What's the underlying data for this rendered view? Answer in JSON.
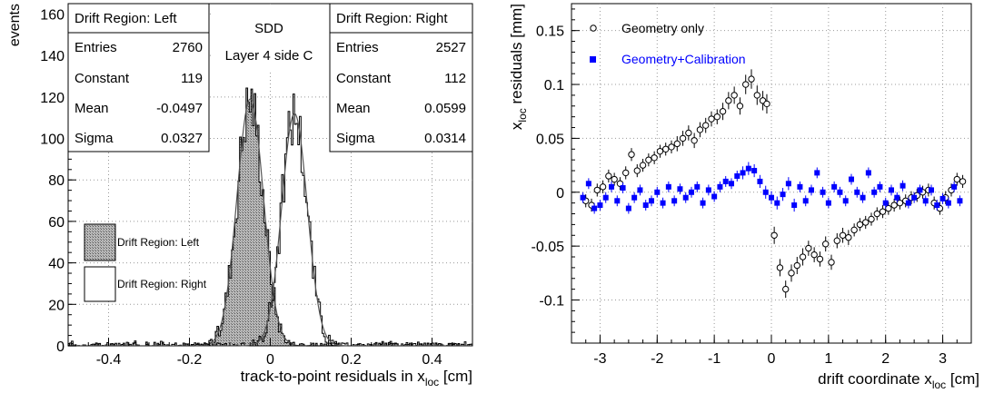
{
  "chart_data": [
    {
      "type": "bar",
      "ylabel": "events",
      "xlabel_main": "track-to-point residuals in x",
      "xlabel_sub": "loc",
      "xlabel_unit": " [cm]",
      "xlim": [
        -0.5,
        0.5
      ],
      "ylim": [
        0,
        165
      ],
      "xticks": [
        -0.4,
        -0.2,
        0,
        0.2,
        0.4
      ],
      "xtick_labels": [
        "-0.4",
        "-0.2",
        "0",
        "0.2",
        "0.4"
      ],
      "yticks": [
        0,
        20,
        40,
        60,
        80,
        100,
        120,
        140,
        160
      ],
      "ytick_labels": [
        "0",
        "20",
        "40",
        "60",
        "80",
        "100",
        "120",
        "140",
        "160"
      ],
      "grid": true,
      "center_title": [
        "SDD",
        "Layer 4 side C"
      ],
      "legend": [
        {
          "label": "Drift Region: Left",
          "fill": "hatched"
        },
        {
          "label": "Drift Region: Right",
          "fill": "none"
        }
      ],
      "stats_boxes": [
        {
          "title": "Drift Region: Left",
          "rows": [
            {
              "name": "Entries",
              "value": "2760"
            },
            {
              "name": "Constant",
              "value": "119"
            },
            {
              "name": "Mean",
              "value": "-0.0497"
            },
            {
              "name": "Sigma",
              "value": "0.0327"
            }
          ]
        },
        {
          "title": "Drift Region: Right",
          "rows": [
            {
              "name": "Entries",
              "value": "2527"
            },
            {
              "name": "Constant",
              "value": "112"
            },
            {
              "name": "Mean",
              "value": "0.0599"
            },
            {
              "name": "Sigma",
              "value": "0.0314"
            }
          ]
        }
      ],
      "series": [
        {
          "name": "Drift Region: Left",
          "entries": 2760,
          "constant": 119,
          "mean": -0.0497,
          "sigma": 0.0327
        },
        {
          "name": "Drift Region: Right",
          "entries": 2527,
          "constant": 112,
          "mean": 0.0599,
          "sigma": 0.0314
        }
      ]
    },
    {
      "type": "scatter",
      "ylabel_main": "x",
      "ylabel_sub": "loc",
      "ylabel_unit": " residuals [mm]",
      "xlabel_main": "drift coordinate x",
      "xlabel_sub": "loc",
      "xlabel_unit": " [cm]",
      "xlim": [
        -3.5,
        3.5
      ],
      "ylim": [
        -0.14,
        0.175
      ],
      "xticks": [
        -3,
        -2,
        -1,
        0,
        1,
        2,
        3
      ],
      "xtick_labels": [
        "-3",
        "-2",
        "-1",
        "0",
        "1",
        "2",
        "3"
      ],
      "yticks": [
        -0.1,
        -0.05,
        0,
        0.05,
        0.1,
        0.15
      ],
      "ytick_labels": [
        "-0.1",
        "-0.05",
        "0",
        "0.05",
        "0.1",
        "0.15"
      ],
      "grid": true,
      "legend_placement": "top-left",
      "legend": [
        {
          "label": "Geometry only",
          "color": "#000000",
          "marker": "open-circle"
        },
        {
          "label": "Geometry+Calibration",
          "color": "#0000ff",
          "marker": "filled-square"
        }
      ],
      "series": [
        {
          "name": "Geometry only",
          "x": [
            -3.25,
            -3.15,
            -3.05,
            -2.95,
            -2.85,
            -2.75,
            -2.65,
            -2.55,
            -2.45,
            -2.35,
            -2.25,
            -2.15,
            -2.05,
            -1.95,
            -1.85,
            -1.75,
            -1.65,
            -1.55,
            -1.45,
            -1.35,
            -1.25,
            -1.15,
            -1.05,
            -0.95,
            -0.85,
            -0.75,
            -0.65,
            -0.55,
            -0.45,
            -0.35,
            -0.25,
            -0.15,
            -0.08,
            0.05,
            0.15,
            0.25,
            0.35,
            0.45,
            0.55,
            0.65,
            0.75,
            0.85,
            0.95,
            1.05,
            1.15,
            1.25,
            1.35,
            1.45,
            1.55,
            1.65,
            1.75,
            1.85,
            1.95,
            2.05,
            2.15,
            2.25,
            2.35,
            2.45,
            2.55,
            2.65,
            2.75,
            2.85,
            2.95,
            3.05,
            3.15,
            3.25,
            3.35
          ],
          "y": [
            -0.008,
            -0.012,
            0.002,
            0.005,
            0.015,
            0.012,
            0.008,
            0.018,
            0.035,
            0.02,
            0.025,
            0.03,
            0.032,
            0.038,
            0.04,
            0.042,
            0.045,
            0.05,
            0.055,
            0.048,
            0.058,
            0.062,
            0.068,
            0.07,
            0.075,
            0.085,
            0.09,
            0.08,
            0.1,
            0.105,
            0.09,
            0.085,
            0.082,
            -0.04,
            -0.07,
            -0.09,
            -0.075,
            -0.068,
            -0.06,
            -0.052,
            -0.058,
            -0.062,
            -0.048,
            -0.065,
            -0.045,
            -0.04,
            -0.042,
            -0.035,
            -0.03,
            -0.028,
            -0.025,
            -0.02,
            -0.018,
            -0.015,
            -0.012,
            -0.01,
            -0.008,
            -0.005,
            -0.003,
            0.0,
            0.002,
            -0.01,
            -0.015,
            -0.005,
            0.002,
            0.012,
            0.01
          ],
          "err": [
            0.006,
            0.006,
            0.006,
            0.006,
            0.006,
            0.006,
            0.006,
            0.006,
            0.006,
            0.006,
            0.006,
            0.006,
            0.006,
            0.006,
            0.006,
            0.006,
            0.007,
            0.007,
            0.007,
            0.007,
            0.007,
            0.007,
            0.007,
            0.007,
            0.008,
            0.008,
            0.008,
            0.008,
            0.009,
            0.009,
            0.009,
            0.009,
            0.009,
            0.008,
            0.008,
            0.008,
            0.008,
            0.008,
            0.008,
            0.007,
            0.007,
            0.007,
            0.007,
            0.007,
            0.007,
            0.007,
            0.007,
            0.006,
            0.006,
            0.006,
            0.006,
            0.006,
            0.006,
            0.006,
            0.006,
            0.006,
            0.006,
            0.006,
            0.006,
            0.006,
            0.006,
            0.006,
            0.006,
            0.006,
            0.006,
            0.006,
            0.006
          ]
        },
        {
          "name": "Geometry+Calibration",
          "x": [
            -3.3,
            -3.2,
            -3.1,
            -3.0,
            -2.9,
            -2.8,
            -2.7,
            -2.6,
            -2.5,
            -2.4,
            -2.3,
            -2.2,
            -2.1,
            -2.0,
            -1.9,
            -1.8,
            -1.7,
            -1.6,
            -1.5,
            -1.4,
            -1.3,
            -1.2,
            -1.1,
            -1.0,
            -0.9,
            -0.8,
            -0.7,
            -0.6,
            -0.5,
            -0.4,
            -0.3,
            -0.2,
            -0.1,
            0.0,
            0.1,
            0.2,
            0.3,
            0.4,
            0.5,
            0.6,
            0.7,
            0.8,
            0.9,
            1.0,
            1.1,
            1.2,
            1.3,
            1.4,
            1.5,
            1.6,
            1.7,
            1.8,
            1.9,
            2.0,
            2.1,
            2.2,
            2.3,
            2.4,
            2.5,
            2.6,
            2.7,
            2.8,
            2.9,
            3.0,
            3.1,
            3.2,
            3.3
          ],
          "y": [
            -0.005,
            0.008,
            -0.015,
            -0.012,
            -0.005,
            0.005,
            -0.008,
            0.004,
            -0.015,
            -0.005,
            0.002,
            -0.012,
            -0.008,
            0.0,
            -0.01,
            0.005,
            -0.008,
            0.003,
            -0.005,
            0.0,
            0.005,
            -0.01,
            0.002,
            -0.004,
            0.005,
            0.01,
            0.008,
            0.015,
            0.018,
            0.022,
            0.02,
            0.01,
            0.0,
            -0.005,
            -0.01,
            -0.002,
            0.008,
            -0.012,
            0.005,
            -0.008,
            0.002,
            0.018,
            0.0,
            -0.01,
            0.005,
            0.0,
            -0.008,
            0.012,
            0.0,
            -0.005,
            0.018,
            0.0,
            0.005,
            -0.01,
            0.002,
            -0.005,
            0.006,
            -0.01,
            -0.005,
            0.002,
            -0.008,
            0.002,
            -0.012,
            -0.006,
            -0.01,
            0.005,
            -0.008
          ],
          "err": [
            0.005,
            0.005,
            0.005,
            0.005,
            0.005,
            0.005,
            0.005,
            0.005,
            0.005,
            0.005,
            0.005,
            0.005,
            0.005,
            0.005,
            0.005,
            0.005,
            0.005,
            0.005,
            0.005,
            0.005,
            0.005,
            0.005,
            0.005,
            0.005,
            0.005,
            0.005,
            0.005,
            0.005,
            0.006,
            0.006,
            0.006,
            0.006,
            0.006,
            0.006,
            0.006,
            0.006,
            0.006,
            0.006,
            0.005,
            0.005,
            0.005,
            0.005,
            0.005,
            0.005,
            0.005,
            0.005,
            0.005,
            0.005,
            0.005,
            0.005,
            0.005,
            0.005,
            0.005,
            0.005,
            0.005,
            0.005,
            0.005,
            0.005,
            0.005,
            0.005,
            0.005,
            0.005,
            0.005,
            0.005,
            0.005,
            0.005,
            0.005
          ]
        }
      ]
    }
  ]
}
